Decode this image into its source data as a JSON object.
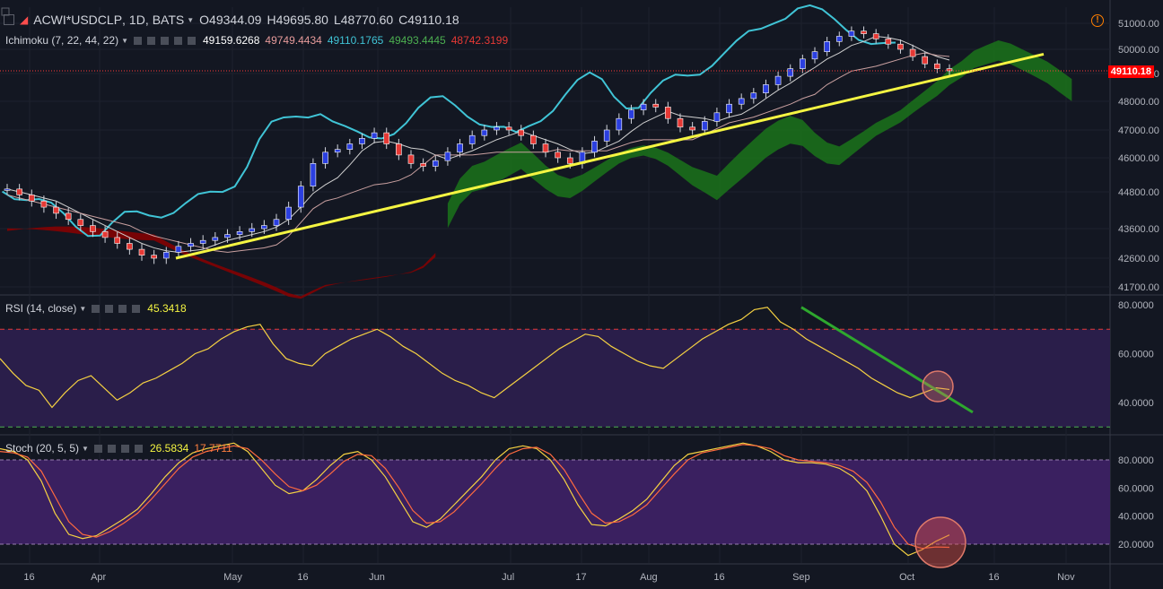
{
  "header": {
    "symbol": "ACWI*USDCLP",
    "timeframe": "1D",
    "exchange": "BATS",
    "open": "O49344.09",
    "high": "H49695.80",
    "low": "L48770.60",
    "close": "C49110.18"
  },
  "last_price": "49110.18",
  "ichimoku": {
    "label": "Ichimoku (7, 22, 44, 22)",
    "values": [
      "49159.6268",
      "49749.4434",
      "49110.1765",
      "49493.4445",
      "48742.3199"
    ],
    "colors": [
      "#ffffff",
      "#e79b9b",
      "#40c4d6",
      "#4caf50",
      "#e53935"
    ]
  },
  "rsi": {
    "label": "RSI (14, close)",
    "value": "45.3418"
  },
  "stoch": {
    "label": "Stoch (20, 5, 5)",
    "values": [
      "26.5834",
      "17.7711"
    ]
  },
  "chart_data": [
    {
      "type": "candlestick",
      "title": "ACWI*USDCLP, 1D, BATS",
      "price_ticks": [
        "51000.00",
        "50000.00",
        "49000.00",
        "48000.00",
        "47000.00",
        "46000.00",
        "44800.00",
        "43600.00",
        "42600.00",
        "41700.00"
      ],
      "x_ticks": [
        "16",
        "Apr",
        "May",
        "16",
        "Jun",
        "Jul",
        "17",
        "Aug",
        "16",
        "Sep",
        "Oct",
        "16",
        "Nov"
      ],
      "ylim": [
        41500,
        51400
      ],
      "ohlc_start": 44900,
      "closes": [
        44900,
        44700,
        44500,
        44300,
        44100,
        43900,
        43700,
        43500,
        43300,
        43100,
        42900,
        42700,
        42600,
        42800,
        43000,
        43100,
        43200,
        43300,
        43400,
        43500,
        43600,
        43700,
        43900,
        44300,
        45000,
        45800,
        46200,
        46300,
        46500,
        46700,
        46900,
        46500,
        46100,
        45800,
        45700,
        45900,
        46200,
        46500,
        46800,
        47000,
        47100,
        47000,
        46800,
        46500,
        46200,
        46000,
        45800,
        46200,
        46600,
        47000,
        47400,
        47700,
        47900,
        47800,
        47400,
        47100,
        47000,
        47300,
        47600,
        47900,
        48100,
        48300,
        48600,
        48900,
        49200,
        49600,
        49900,
        50300,
        50500,
        50700,
        50600,
        50400,
        50200,
        50000,
        49700,
        49400,
        49200,
        49110
      ],
      "last_price": 49110.18,
      "trendline": {
        "from": [
          42600
        ],
        "to": [
          49800
        ]
      },
      "series": [
        {
          "name": "Ichimoku"
        }
      ]
    },
    {
      "type": "line",
      "title": "RSI (14, close)",
      "y_ticks": [
        "80.0000",
        "60.0000",
        "40.0000"
      ],
      "ylim": [
        28,
        82
      ],
      "levels": [
        70,
        30
      ],
      "values": [
        58,
        52,
        47,
        45,
        38,
        44,
        49,
        51,
        46,
        41,
        44,
        48,
        50,
        53,
        56,
        60,
        62,
        66,
        69,
        71,
        72,
        64,
        58,
        56,
        55,
        60,
        63,
        66,
        68,
        70,
        67,
        63,
        60,
        56,
        52,
        49,
        47,
        44,
        42,
        46,
        50,
        54,
        58,
        62,
        65,
        68,
        67,
        63,
        60,
        57,
        55,
        54,
        58,
        62,
        66,
        69,
        72,
        74,
        78,
        79,
        73,
        70,
        66,
        63,
        60,
        57,
        54,
        50,
        47,
        44,
        42,
        44,
        46,
        45.34
      ],
      "trendline": {
        "from": [
          79
        ],
        "to": [
          36
        ]
      }
    },
    {
      "type": "line",
      "title": "Stoch (20, 5, 5)",
      "y_ticks": [
        "80.0000",
        "60.0000",
        "40.0000",
        "20.0000"
      ],
      "ylim": [
        5,
        96
      ],
      "levels": [
        80,
        20
      ],
      "series": [
        {
          "values": [
            88,
            86,
            80,
            65,
            42,
            27,
            24,
            26,
            32,
            38,
            45,
            56,
            68,
            78,
            85,
            88,
            90,
            92,
            86,
            74,
            62,
            56,
            58,
            66,
            76,
            84,
            86,
            80,
            68,
            52,
            36,
            32,
            38,
            48,
            58,
            68,
            80,
            88,
            90,
            88,
            80,
            66,
            48,
            34,
            33,
            38,
            44,
            52,
            64,
            76,
            84,
            86,
            88,
            90,
            92,
            90,
            86,
            80,
            78,
            78,
            77,
            74,
            68,
            58,
            40,
            20,
            12,
            16,
            22,
            26.58
          ]
        },
        {
          "values": [
            86,
            85,
            82,
            72,
            54,
            36,
            27,
            25,
            29,
            35,
            42,
            52,
            63,
            74,
            82,
            86,
            88,
            90,
            88,
            80,
            70,
            61,
            58,
            62,
            70,
            79,
            84,
            83,
            74,
            60,
            44,
            35,
            36,
            43,
            53,
            63,
            74,
            84,
            88,
            89,
            84,
            73,
            57,
            42,
            35,
            36,
            41,
            48,
            59,
            70,
            80,
            85,
            87,
            89,
            91,
            90,
            88,
            83,
            80,
            79,
            78,
            76,
            72,
            64,
            50,
            32,
            20,
            17,
            18,
            17.77
          ]
        }
      ]
    }
  ]
}
